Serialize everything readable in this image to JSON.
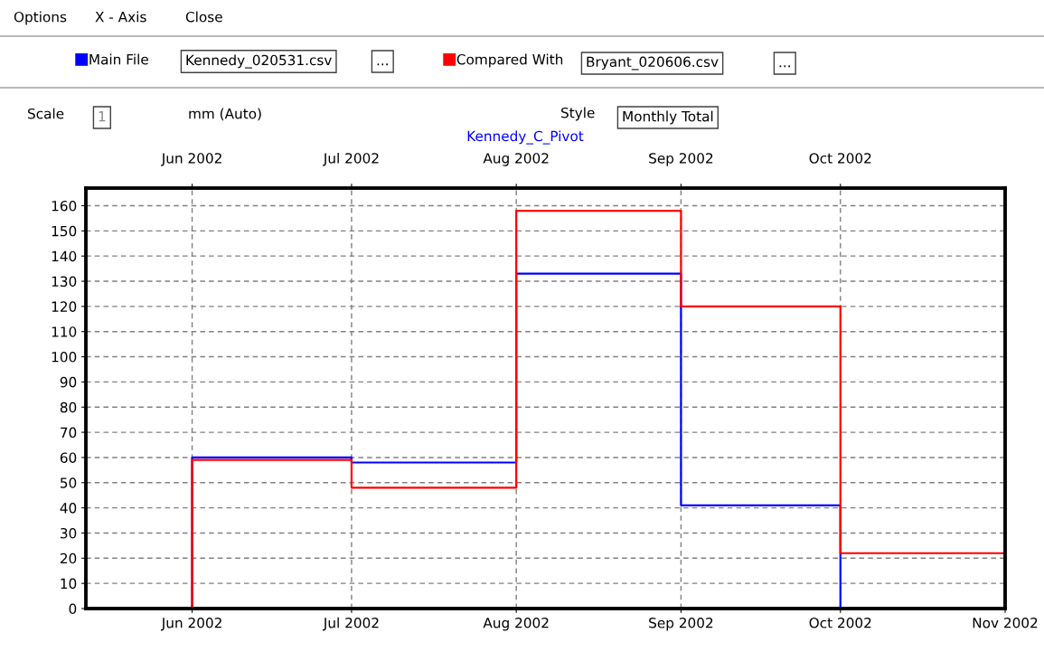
{
  "chart_data": {
    "type": "step",
    "title": "Kennedy_C_Pivot",
    "series": [
      {
        "name": "Main File",
        "color": "#0000ff",
        "x": [
          "2002-05-12",
          "2002-06-01",
          "2002-07-01",
          "2002-08-01",
          "2002-09-01",
          "2002-10-01"
        ],
        "values": [
          0,
          60,
          58,
          133,
          41,
          0
        ]
      },
      {
        "name": "Compared With",
        "color": "#ff0000",
        "x": [
          "2002-05-12",
          "2002-06-01",
          "2002-07-01",
          "2002-08-01",
          "2002-09-01",
          "2002-10-01",
          "2002-11-01"
        ],
        "values": [
          0,
          59,
          48,
          158,
          120,
          22,
          22
        ]
      }
    ],
    "xlim": [
      "2002-05-12",
      "2002-11-01"
    ],
    "xticks": [
      {
        "value": "2002-06-01",
        "label": "Jun 2002"
      },
      {
        "value": "2002-07-01",
        "label": "Jul 2002"
      },
      {
        "value": "2002-08-01",
        "label": "Aug 2002"
      },
      {
        "value": "2002-09-01",
        "label": "Sep 2002"
      },
      {
        "value": "2002-10-01",
        "label": "Oct 2002"
      },
      {
        "value": "2002-11-01",
        "label": "Nov 2002"
      }
    ],
    "x2lim": [
      "2002-05-12",
      "2002-11-01"
    ],
    "x2ticks": [
      {
        "value": "2002-06-01",
        "label": "Jun 2002"
      },
      {
        "value": "2002-07-01",
        "label": "Jul 2002"
      },
      {
        "value": "2002-08-01",
        "label": "Aug 2002"
      },
      {
        "value": "2002-09-01",
        "label": "Sep 2002"
      },
      {
        "value": "2002-10-01",
        "label": "Oct 2002"
      }
    ],
    "ylim": [
      0,
      167
    ],
    "yticks": [
      0,
      10,
      20,
      30,
      40,
      50,
      60,
      70,
      80,
      90,
      100,
      110,
      120,
      130,
      140,
      150,
      160
    ],
    "grid": true,
    "line_style": "solid",
    "legend": "top",
    "annotations": [
      "Options",
      "X - Axis",
      "Close",
      "Kennedy_020531.csv",
      "...",
      "Bryant_020606.csv",
      "...",
      "Scale",
      "1",
      "mm (Auto)",
      "Style",
      "Monthly Total"
    ]
  }
}
